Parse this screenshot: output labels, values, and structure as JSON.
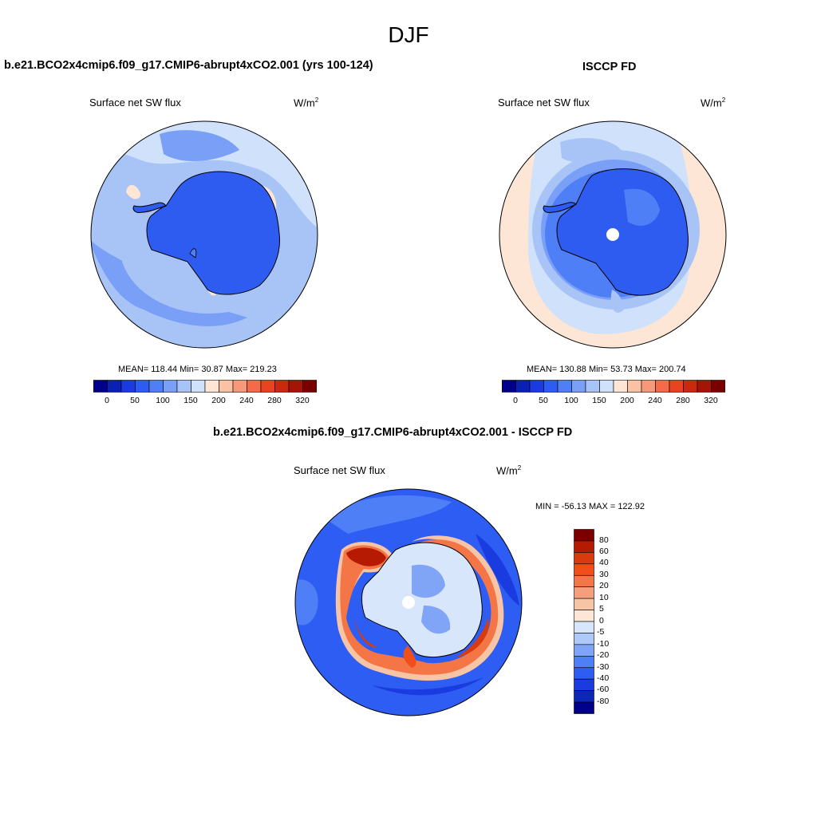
{
  "figure": {
    "title": "DJF"
  },
  "panels": [
    {
      "title": "b.e21.BCO2x4cmip6.f09_g17.CMIP6-abrupt4xCO2.001 (yrs 100-124)",
      "variable": "Surface net SW flux",
      "units_base": "W/m",
      "units_exp": "2",
      "stats": "MEAN= 118.44  Min=  30.87  Max= 219.23"
    },
    {
      "title": "ISCCP FD",
      "variable": "Surface net SW flux",
      "units_base": "W/m",
      "units_exp": "2",
      "stats": "MEAN= 130.88  Min=  53.73  Max= 200.74"
    },
    {
      "title": "b.e21.BCO2x4cmip6.f09_g17.CMIP6-abrupt4xCO2.001 - ISCCP FD",
      "variable": "Surface net SW flux",
      "units_base": "W/m",
      "units_exp": "2",
      "stats": "MIN = -56.13 MAX = 122.92"
    }
  ],
  "colorbar_abs": {
    "colors": [
      "#00008b",
      "#0a1fb3",
      "#1a3be0",
      "#2e5cf0",
      "#4f7ff7",
      "#7a9ff7",
      "#a8c4f7",
      "#d0e2fb",
      "#fde6d5",
      "#f8c2a3",
      "#f5997a",
      "#f36b48",
      "#e8441f",
      "#c92a0d",
      "#a51505",
      "#7a0000"
    ],
    "tick_labels": [
      "0",
      "50",
      "100",
      "150",
      "200",
      "240",
      "280",
      "320"
    ]
  },
  "colorbar_diff": {
    "colors": [
      "#7a0000",
      "#b61a02",
      "#d93a0e",
      "#f04f1c",
      "#f47647",
      "#f69f7c",
      "#f8c4a6",
      "#fde6d5",
      "#d8e6fb",
      "#aec8f7",
      "#80a5f7",
      "#4f7ff7",
      "#2d5df2",
      "#1a3be0",
      "#0c26b8",
      "#00008b"
    ],
    "tick_labels": [
      "80",
      "60",
      "40",
      "30",
      "20",
      "10",
      "5",
      "0",
      "-5",
      "-10",
      "-20",
      "-30",
      "-40",
      "-60",
      "-80"
    ]
  }
}
